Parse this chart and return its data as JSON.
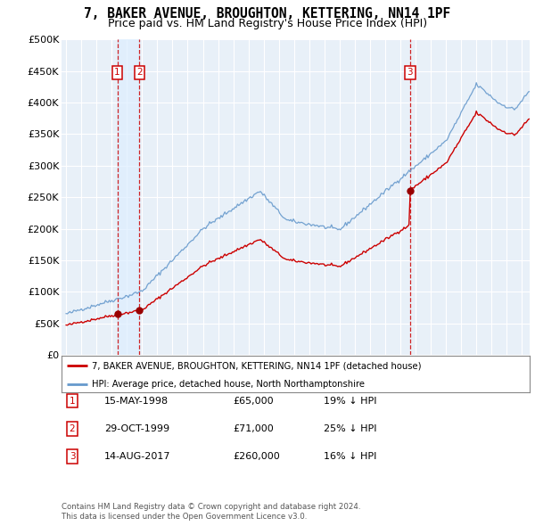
{
  "title": "7, BAKER AVENUE, BROUGHTON, KETTERING, NN14 1PF",
  "subtitle": "Price paid vs. HM Land Registry's House Price Index (HPI)",
  "title_fontsize": 10.5,
  "subtitle_fontsize": 9,
  "background_color": "#ffffff",
  "plot_bg_color": "#e8f0f8",
  "grid_color": "#ffffff",
  "hpi_color": "#6699cc",
  "price_color": "#cc0000",
  "sale_marker_color": "#990000",
  "vline_color": "#cc0000",
  "shade_color": "#ddeeff",
  "ylim": [
    0,
    500000
  ],
  "yticks": [
    0,
    50000,
    100000,
    150000,
    200000,
    250000,
    300000,
    350000,
    400000,
    450000,
    500000
  ],
  "ytick_labels": [
    "£0",
    "£50K",
    "£100K",
    "£150K",
    "£200K",
    "£250K",
    "£300K",
    "£350K",
    "£400K",
    "£450K",
    "£500K"
  ],
  "xlim_start": 1994.7,
  "xlim_end": 2025.5,
  "xticks": [
    1995,
    1996,
    1997,
    1998,
    1999,
    2000,
    2001,
    2002,
    2003,
    2004,
    2005,
    2006,
    2007,
    2008,
    2009,
    2010,
    2011,
    2012,
    2013,
    2014,
    2015,
    2016,
    2017,
    2018,
    2019,
    2020,
    2021,
    2022,
    2023,
    2024,
    2025
  ],
  "sales": [
    {
      "label": "1",
      "date": 1998.37,
      "price": 65000,
      "display": "15-MAY-1998",
      "amount": "£65,000",
      "pct": "19%"
    },
    {
      "label": "2",
      "date": 1999.83,
      "price": 71000,
      "display": "29-OCT-1999",
      "amount": "£71,000",
      "pct": "25%"
    },
    {
      "label": "3",
      "date": 2017.62,
      "price": 260000,
      "display": "14-AUG-2017",
      "amount": "£260,000",
      "pct": "16%"
    }
  ],
  "legend_line1": "7, BAKER AVENUE, BROUGHTON, KETTERING, NN14 1PF (detached house)",
  "legend_line2": "HPI: Average price, detached house, North Northamptonshire",
  "footer1": "Contains HM Land Registry data © Crown copyright and database right 2024.",
  "footer2": "This data is licensed under the Open Government Licence v3.0."
}
